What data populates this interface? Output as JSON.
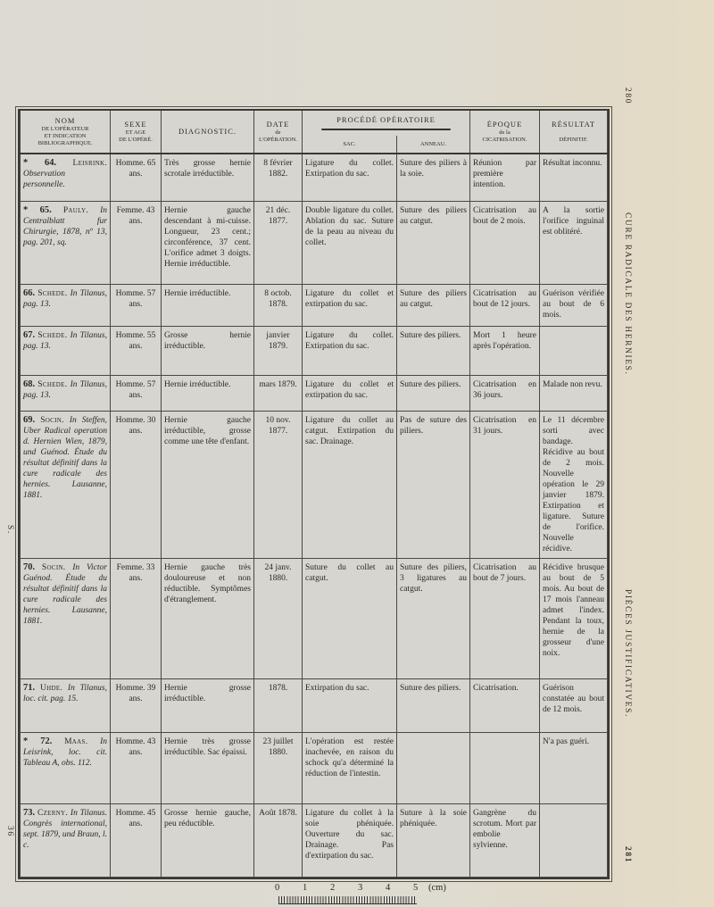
{
  "header": {
    "nom": [
      "NOM",
      "DE L'OPÉRATEUR",
      "ET INDICATION",
      "BIBLIOGRAPHIQUE."
    ],
    "sexe": [
      "SEXE",
      "ET AGE",
      "DE L'OPÉRÉ."
    ],
    "diagnostic": "DIAGNOSTIC.",
    "date": [
      "DATE",
      "de",
      "L'OPÉRATION."
    ],
    "procede": "PROCÉDÉ OPÉRATOIRE",
    "sac": "SAC.",
    "anneau": "ANNEAU.",
    "epoque": [
      "ÉPOQUE",
      "de la",
      "CICATRISATION."
    ],
    "resultat": [
      "RÉSULTAT",
      "DÉFINITIF."
    ]
  },
  "rows": [
    {
      "num": "* 64.",
      "author": "Leisrink.",
      "ref": "Observation personnelle.",
      "sexe": "Homme. 65 ans.",
      "diagnostic": "Très grosse hernie scrotale irréductible.",
      "date": "8 février 1882.",
      "sac": "Ligature du collet. Extirpation du sac.",
      "anneau": "Suture des piliers à la soie.",
      "epoque": "Réunion par première intention.",
      "resultat": "Résultat inconnu."
    },
    {
      "num": "* 65.",
      "author": "Pauly.",
      "ref": "In Centralblatt fur Chirurgie, 1878, nº 13, pag. 201, sq.",
      "sexe": "Femme. 43 ans.",
      "diagnostic": "Hernie gauche descendant à mi-cuisse. Longueur, 23 cent.; circonférence, 37 cent. L'orifice admet 3 doigts. Hernie irréductible.",
      "date": "21 déc. 1877.",
      "sac": "Double ligature du collet. Ablation du sac. Suture de la peau au niveau du collet.",
      "anneau": "Suture des piliers au catgut.",
      "epoque": "Cicatrisation au bout de 2 mois.",
      "resultat": "A la sortie l'orifice inguinal est oblitéré."
    },
    {
      "num": "66.",
      "author": "Schede.",
      "ref": "In Tilanus, pag. 13.",
      "sexe": "Homme. 57 ans.",
      "diagnostic": "Hernie irréductible.",
      "date": "8 octob. 1878.",
      "sac": "Ligature du collet et extirpation du sac.",
      "anneau": "Suture des piliers au catgut.",
      "epoque": "Cicatrisation au bout de 12 jours.",
      "resultat": "Guérison vérifiée au bout de 6 mois."
    },
    {
      "num": "67.",
      "author": "Schede.",
      "ref": "In Tilanus, pag. 13.",
      "sexe": "Homme. 55 ans.",
      "diagnostic": "Grosse hernie irréductible.",
      "date": "janvier 1879.",
      "sac": "Ligature du collet. Extirpation du sac.",
      "anneau": "Suture des piliers.",
      "epoque": "Mort 1 heure après l'opération.",
      "resultat": ""
    },
    {
      "num": "68.",
      "author": "Schede.",
      "ref": "In Tilanus, pag. 13.",
      "sexe": "Homme. 57 ans.",
      "diagnostic": "Hernie irréductible.",
      "date": "mars 1879.",
      "sac": "Ligature du collet et extirpation du sac.",
      "anneau": "Suture des piliers.",
      "epoque": "Cicatrisation en 36 jours.",
      "resultat": "Malade non revu."
    },
    {
      "num": "69.",
      "author": "Socin.",
      "ref": "In Steffen, Uber Radical operation d. Hernien Wien, 1879, und Guénod. Étude du résultat définitif dans la cure radicale des hernies. Lausanne, 1881.",
      "sexe": "Homme. 30 ans.",
      "diagnostic": "Hernie gauche irréductible, grosse comme une tête d'enfant.",
      "date": "10 nov. 1877.",
      "sac": "Ligature du collet au catgut. Extirpation du sac. Drainage.",
      "anneau": "Pas de suture des piliers.",
      "epoque": "Cicatrisation en 31 jours.",
      "resultat": "Le 11 décembre sorti avec bandage. Récidive au bout de 2 mois. Nouvelle opération le 29 janvier 1879. Extirpation et ligature. Suture de l'orifice. Nouvelle récidive."
    },
    {
      "num": "70.",
      "author": "Socin.",
      "ref": "In Victor Guénod. Étude du résultat définitif dans la cure radicale des hernies. Lausanne, 1881.",
      "sexe": "Femme. 33 ans.",
      "diagnostic": "Hernie gauche très douloureuse et non réductible. Symptômes d'étranglement.",
      "date": "24 janv. 1880.",
      "sac": "Suture du collet au catgut.",
      "anneau": "Suture des piliers, 3 ligatures au catgut.",
      "epoque": "Cicatrisation au bout de 7 jours.",
      "resultat": "Récidive brusque au bout de 5 mois. Au bout de 17 mois l'anneau admet l'index. Pendant la toux, hernie de la grosseur d'une noix."
    },
    {
      "num": "71.",
      "author": "Uhde.",
      "ref": "In Tilanus, loc. cit. pag. 15.",
      "sexe": "Homme. 39 ans.",
      "diagnostic": "Hernie grosse irréductible.",
      "date": "1878.",
      "sac": "Extirpation du sac.",
      "anneau": "Suture des piliers.",
      "epoque": "Cicatrisation.",
      "resultat": "Guérison constatée au bout de 12 mois."
    },
    {
      "num": "* 72.",
      "author": "Maas.",
      "ref": "In Leisrink, loc. cit. Tableau A, obs. 112.",
      "sexe": "Homme. 43 ans.",
      "diagnostic": "Hernie très grosse irréductible. Sac épaissi.",
      "date": "23 juillet 1880.",
      "sac": "L'opération est restée inachevée, en raison du schock qu'a déterminé la réduction de l'intestin.",
      "anneau": "",
      "epoque": "",
      "resultat": "N'a pas guéri."
    },
    {
      "num": "73.",
      "author": "Czerny.",
      "ref": "In Tilanus. Congrès international, sept. 1879, und Braun, l. c.",
      "sexe": "Homme. 45 ans.",
      "diagnostic": "Grosse hernie gauche, peu réductible.",
      "date": "Août 1878.",
      "sac": "Ligature du collet à la soie phéniquée. Ouverture du sac. Drainage. Pas d'extirpation du sac.",
      "anneau": "Suture à la soie phéniquée.",
      "epoque": "Gangrène du scrotum. Mort par embolie sylvienne.",
      "resultat": ""
    }
  ],
  "margins": {
    "page_left": "280",
    "running_title_left": "CURE RADICALE DES HERNIES.",
    "running_title_right": "PIÈCES JUSTIFICATIVES.",
    "page_right": "281",
    "signature": "S.",
    "gathering": "36"
  },
  "ruler": {
    "labels": [
      "0",
      "1",
      "2",
      "3",
      "4",
      "5"
    ],
    "unit": "(cm)"
  }
}
